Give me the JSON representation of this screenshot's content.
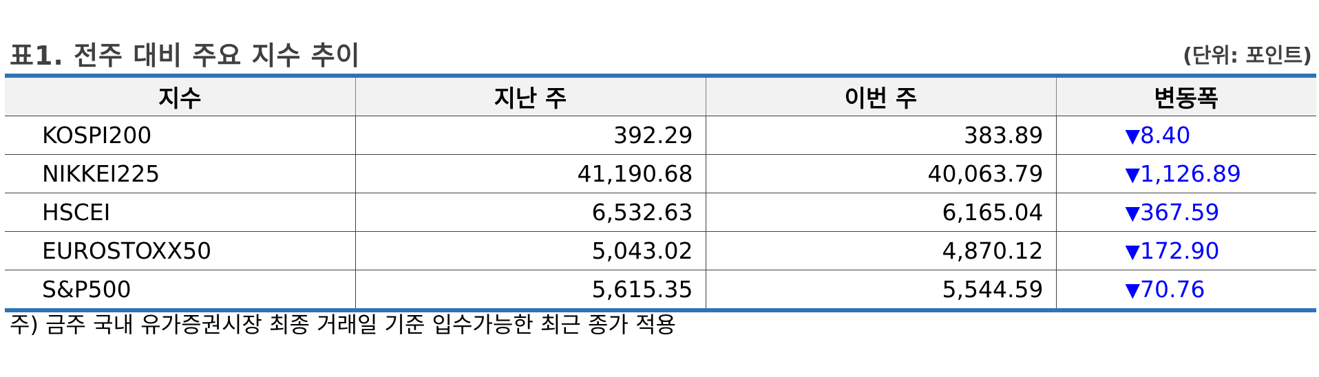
{
  "header": {
    "title": "표1. 전주 대비 주요 지수 추이",
    "unit": "(단위: 포인트)"
  },
  "table": {
    "columns": [
      "지수",
      "지난 주",
      "이번 주",
      "변동폭"
    ],
    "rows": [
      {
        "index": "KOSPI200",
        "last_week": "392.29",
        "this_week": "383.89",
        "change_symbol": "▼",
        "change": "8.40"
      },
      {
        "index": "NIKKEI225",
        "last_week": "41,190.68",
        "this_week": "40,063.79",
        "change_symbol": "▼",
        "change": "1,126.89"
      },
      {
        "index": "HSCEI",
        "last_week": "6,532.63",
        "this_week": "6,165.04",
        "change_symbol": "▼",
        "change": "367.59"
      },
      {
        "index": "EUROSTOXX50",
        "last_week": "5,043.02",
        "this_week": "4,870.12",
        "change_symbol": "▼",
        "change": "172.90"
      },
      {
        "index": "S&P500",
        "last_week": "5,615.35",
        "this_week": "5,544.59",
        "change_symbol": "▼",
        "change": "70.76"
      }
    ]
  },
  "footnote": "주) 금주 국내 유가증권시장 최종 거래일 기준 입수가능한 최근 종가 적용",
  "colors": {
    "accent_border": "#2e74b5",
    "header_bg": "#f2f2f2",
    "decrease": "#0000ff",
    "title_text": "#404040"
  },
  "icons": {
    "decrease": "down-triangle-icon"
  }
}
